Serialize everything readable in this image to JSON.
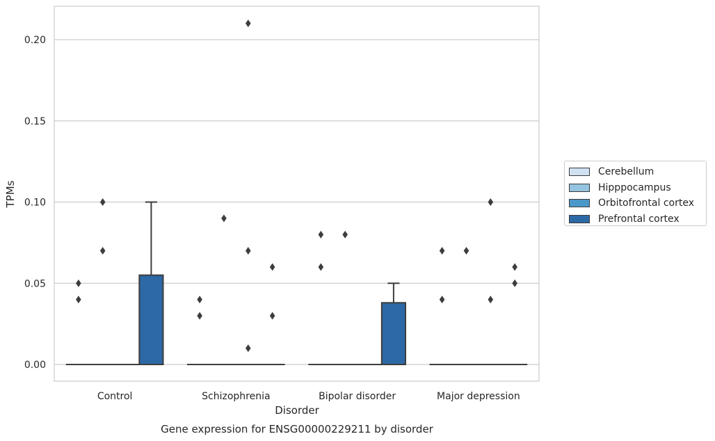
{
  "chart_data": {
    "type": "box",
    "title": "Gene expression for ENSG00000229211 by disorder",
    "xlabel": "Disorder",
    "ylabel": "TPMs",
    "ylim": [
      -0.01,
      0.22
    ],
    "yticks": [
      "0.00",
      "0.05",
      "0.10",
      "0.15",
      "0.20"
    ],
    "categories": [
      "Control",
      "Schizophrenia",
      "Bipolar disorder",
      "Major depression"
    ],
    "grid": true,
    "legend_position": "right",
    "series": [
      {
        "name": "Cerebellum",
        "color": "#d0e1f2",
        "boxes": [
          {
            "q1": 0,
            "median": 0,
            "q3": 0,
            "whisker_low": 0,
            "whisker_high": 0,
            "outliers": [
              0.04,
              0.05
            ]
          },
          {
            "q1": 0,
            "median": 0,
            "q3": 0,
            "whisker_low": 0,
            "whisker_high": 0,
            "outliers": [
              0.03,
              0.04
            ]
          },
          {
            "q1": 0,
            "median": 0,
            "q3": 0,
            "whisker_low": 0,
            "whisker_high": 0,
            "outliers": [
              0.06,
              0.08
            ]
          },
          {
            "q1": 0,
            "median": 0,
            "q3": 0,
            "whisker_low": 0,
            "whisker_high": 0,
            "outliers": [
              0.04,
              0.07
            ]
          }
        ]
      },
      {
        "name": "Hipppocampus",
        "color": "#94c4df",
        "boxes": [
          {
            "q1": 0,
            "median": 0,
            "q3": 0,
            "whisker_low": 0,
            "whisker_high": 0,
            "outliers": [
              0.07,
              0.1
            ]
          },
          {
            "q1": 0,
            "median": 0,
            "q3": 0,
            "whisker_low": 0,
            "whisker_high": 0,
            "outliers": [
              0.09
            ]
          },
          {
            "q1": 0,
            "median": 0,
            "q3": 0,
            "whisker_low": 0,
            "whisker_high": 0,
            "outliers": [
              0.08
            ]
          },
          {
            "q1": 0,
            "median": 0,
            "q3": 0,
            "whisker_low": 0,
            "whisker_high": 0,
            "outliers": [
              0.07
            ]
          }
        ]
      },
      {
        "name": "Orbitofrontal cortex",
        "color": "#4a98c9",
        "boxes": [
          {
            "q1": 0,
            "median": 0,
            "q3": 0,
            "whisker_low": 0,
            "whisker_high": 0,
            "outliers": []
          },
          {
            "q1": 0,
            "median": 0,
            "q3": 0,
            "whisker_low": 0,
            "whisker_high": 0,
            "outliers": [
              0.01,
              0.07,
              0.21
            ]
          },
          {
            "q1": 0,
            "median": 0,
            "q3": 0,
            "whisker_low": 0,
            "whisker_high": 0,
            "outliers": []
          },
          {
            "q1": 0,
            "median": 0,
            "q3": 0,
            "whisker_low": 0,
            "whisker_high": 0,
            "outliers": [
              0.04,
              0.1
            ]
          }
        ]
      },
      {
        "name": "Prefrontal cortex",
        "color": "#2c69a6",
        "boxes": [
          {
            "q1": 0,
            "median": 0,
            "q3": 0.055,
            "whisker_low": 0,
            "whisker_high": 0.1,
            "outliers": []
          },
          {
            "q1": 0,
            "median": 0,
            "q3": 0,
            "whisker_low": 0,
            "whisker_high": 0,
            "outliers": [
              0.03,
              0.06
            ]
          },
          {
            "q1": 0,
            "median": 0,
            "q3": 0.038,
            "whisker_low": 0,
            "whisker_high": 0.05,
            "outliers": []
          },
          {
            "q1": 0,
            "median": 0,
            "q3": 0,
            "whisker_low": 0,
            "whisker_high": 0,
            "outliers": [
              0.05,
              0.06
            ]
          }
        ]
      }
    ]
  }
}
